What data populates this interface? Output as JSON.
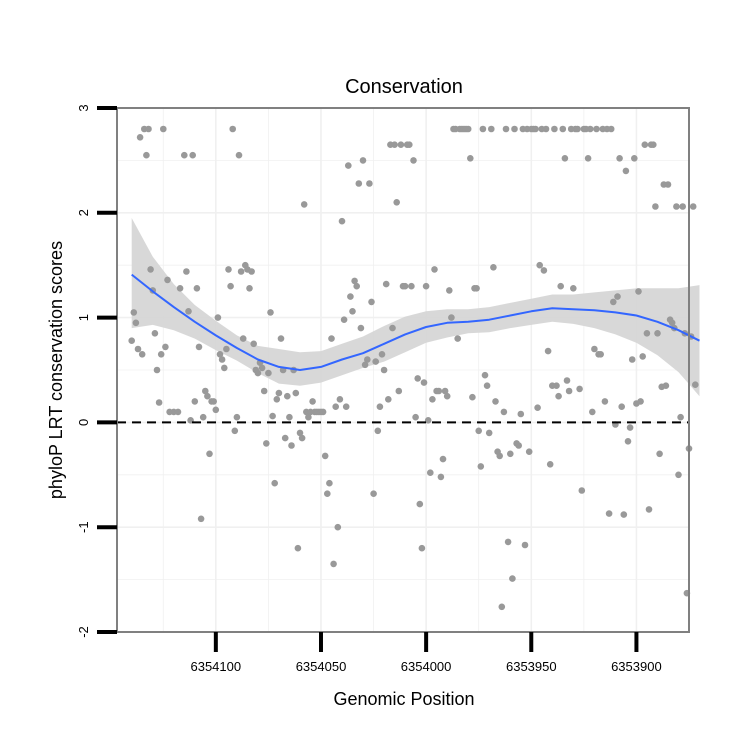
{
  "chart_data": {
    "type": "scatter",
    "title": "Conservation",
    "xlabel": "Genomic Position",
    "ylabel": "phyloP LRT conservation scores",
    "xlim": [
      6354147,
      6353875
    ],
    "x_reversed": true,
    "ylim": [
      -2,
      3
    ],
    "x_ticks": [
      6354100,
      6354050,
      6354000,
      6353950,
      6353900
    ],
    "x_tick_labels": [
      "6354100",
      "6354050",
      "6354000",
      "6353950",
      "6353900"
    ],
    "y_ticks": [
      -2,
      -1,
      0,
      1,
      2,
      3
    ],
    "y_tick_labels": [
      "-2",
      "-1",
      "0",
      "1",
      "2",
      "3"
    ],
    "grid": true,
    "reference_line": {
      "y": 0,
      "style": "dashed",
      "color": "#000000"
    },
    "colors": {
      "points": "#999999",
      "smooth_line": "#3366FF",
      "ribbon": "#d4d4d4",
      "grid": "#f0f0f0",
      "panel_border": "#808080"
    },
    "points": [
      [
        6354140,
        0.78
      ],
      [
        6354139,
        1.05
      ],
      [
        6354138,
        0.95
      ],
      [
        6354137,
        0.7
      ],
      [
        6354136,
        2.72
      ],
      [
        6354135,
        0.65
      ],
      [
        6354134,
        2.8
      ],
      [
        6354133,
        2.55
      ],
      [
        6354132,
        2.8
      ],
      [
        6354131,
        1.46
      ],
      [
        6354130,
        1.26
      ],
      [
        6354129,
        0.85
      ],
      [
        6354128,
        0.5
      ],
      [
        6354127,
        0.19
      ],
      [
        6354126,
        0.65
      ],
      [
        6354125,
        2.8
      ],
      [
        6354124,
        0.72
      ],
      [
        6354123,
        1.36
      ],
      [
        6354122,
        0.1
      ],
      [
        6354120,
        0.1
      ],
      [
        6354118,
        0.1
      ],
      [
        6354117,
        1.28
      ],
      [
        6354115,
        2.55
      ],
      [
        6354114,
        1.44
      ],
      [
        6354113,
        1.06
      ],
      [
        6354112,
        0.02
      ],
      [
        6354111,
        2.55
      ],
      [
        6354110,
        0.2
      ],
      [
        6354109,
        1.28
      ],
      [
        6354108,
        0.72
      ],
      [
        6354107,
        -0.92
      ],
      [
        6354106,
        0.05
      ],
      [
        6354105,
        0.3
      ],
      [
        6354104,
        0.25
      ],
      [
        6354103,
        -0.3
      ],
      [
        6354102,
        0.2
      ],
      [
        6354101,
        0.2
      ],
      [
        6354100,
        0.12
      ],
      [
        6354099,
        1.0
      ],
      [
        6354098,
        0.65
      ],
      [
        6354097,
        0.6
      ],
      [
        6354096,
        0.52
      ],
      [
        6354095,
        0.7
      ],
      [
        6354094,
        1.46
      ],
      [
        6354093,
        1.3
      ],
      [
        6354092,
        2.8
      ],
      [
        6354091,
        -0.08
      ],
      [
        6354090,
        0.05
      ],
      [
        6354089,
        2.55
      ],
      [
        6354088,
        1.44
      ],
      [
        6354087,
        0.8
      ],
      [
        6354086,
        1.5
      ],
      [
        6354085,
        1.46
      ],
      [
        6354084,
        1.28
      ],
      [
        6354083,
        1.44
      ],
      [
        6354082,
        0.75
      ],
      [
        6354081,
        0.5
      ],
      [
        6354080,
        0.47
      ],
      [
        6354079,
        0.57
      ],
      [
        6354078,
        0.52
      ],
      [
        6354077,
        0.3
      ],
      [
        6354076,
        -0.2
      ],
      [
        6354075,
        0.47
      ],
      [
        6354074,
        1.05
      ],
      [
        6354073,
        0.06
      ],
      [
        6354072,
        -0.58
      ],
      [
        6354071,
        0.22
      ],
      [
        6354070,
        0.28
      ],
      [
        6354069,
        0.8
      ],
      [
        6354068,
        0.5
      ],
      [
        6354067,
        -0.15
      ],
      [
        6354066,
        0.25
      ],
      [
        6354065,
        0.05
      ],
      [
        6354064,
        -0.22
      ],
      [
        6354063,
        0.5
      ],
      [
        6354062,
        0.28
      ],
      [
        6354061,
        -1.2
      ],
      [
        6354060,
        -0.1
      ],
      [
        6354059,
        -0.15
      ],
      [
        6354058,
        2.08
      ],
      [
        6354057,
        0.1
      ],
      [
        6354056,
        0.05
      ],
      [
        6354055,
        0.1
      ],
      [
        6354054,
        0.2
      ],
      [
        6354053,
        0.1
      ],
      [
        6354052,
        0.1
      ],
      [
        6354051,
        0.1
      ],
      [
        6354050,
        0.1
      ],
      [
        6354049,
        0.1
      ],
      [
        6354048,
        -0.32
      ],
      [
        6354047,
        -0.68
      ],
      [
        6354046,
        -0.58
      ],
      [
        6354045,
        0.8
      ],
      [
        6354044,
        -1.35
      ],
      [
        6354043,
        0.15
      ],
      [
        6354042,
        -1.0
      ],
      [
        6354041,
        0.22
      ],
      [
        6354040,
        1.92
      ],
      [
        6354039,
        0.98
      ],
      [
        6354038,
        0.15
      ],
      [
        6354037,
        2.45
      ],
      [
        6354036,
        1.2
      ],
      [
        6354035,
        1.06
      ],
      [
        6354034,
        1.35
      ],
      [
        6354033,
        1.3
      ],
      [
        6354032,
        2.28
      ],
      [
        6354031,
        0.9
      ],
      [
        6354030,
        2.5
      ],
      [
        6354029,
        0.55
      ],
      [
        6354028,
        0.6
      ],
      [
        6354027,
        2.28
      ],
      [
        6354026,
        1.15
      ],
      [
        6354025,
        -0.68
      ],
      [
        6354024,
        0.58
      ],
      [
        6354023,
        -0.08
      ],
      [
        6354022,
        0.15
      ],
      [
        6354021,
        0.65
      ],
      [
        6354020,
        0.5
      ],
      [
        6354019,
        1.32
      ],
      [
        6354018,
        0.22
      ],
      [
        6354017,
        2.65
      ],
      [
        6354016,
        0.9
      ],
      [
        6354015,
        2.65
      ],
      [
        6354014,
        2.1
      ],
      [
        6354013,
        0.3
      ],
      [
        6354012,
        2.65
      ],
      [
        6354011,
        1.3
      ],
      [
        6354010,
        1.3
      ],
      [
        6354009,
        2.65
      ],
      [
        6354008,
        2.65
      ],
      [
        6354007,
        1.3
      ],
      [
        6354006,
        2.5
      ],
      [
        6354005,
        0.05
      ],
      [
        6354004,
        0.42
      ],
      [
        6354003,
        -0.78
      ],
      [
        6354002,
        -1.2
      ],
      [
        6354001,
        0.38
      ],
      [
        6354000,
        1.3
      ],
      [
        6353999,
        0.02
      ],
      [
        6353998,
        -0.48
      ],
      [
        6353997,
        0.22
      ],
      [
        6353996,
        1.46
      ],
      [
        6353995,
        0.3
      ],
      [
        6353994,
        0.3
      ],
      [
        6353993,
        -0.52
      ],
      [
        6353992,
        -0.35
      ],
      [
        6353991,
        0.3
      ],
      [
        6353990,
        0.25
      ],
      [
        6353989,
        1.26
      ],
      [
        6353988,
        1.0
      ],
      [
        6353987,
        2.8
      ],
      [
        6353986,
        2.8
      ],
      [
        6353985,
        0.8
      ],
      [
        6353984,
        2.8
      ],
      [
        6353983,
        2.8
      ],
      [
        6353982,
        2.8
      ],
      [
        6353981,
        2.8
      ],
      [
        6353980,
        2.8
      ],
      [
        6353979,
        2.52
      ],
      [
        6353978,
        0.24
      ],
      [
        6353977,
        1.28
      ],
      [
        6353976,
        1.28
      ],
      [
        6353975,
        -0.08
      ],
      [
        6353974,
        -0.42
      ],
      [
        6353973,
        2.8
      ],
      [
        6353972,
        0.45
      ],
      [
        6353971,
        0.35
      ],
      [
        6353970,
        -0.1
      ],
      [
        6353969,
        2.8
      ],
      [
        6353968,
        1.48
      ],
      [
        6353967,
        0.2
      ],
      [
        6353966,
        -0.28
      ],
      [
        6353965,
        -0.32
      ],
      [
        6353964,
        -1.76
      ],
      [
        6353963,
        0.1
      ],
      [
        6353962,
        2.8
      ],
      [
        6353961,
        -1.14
      ],
      [
        6353960,
        -0.3
      ],
      [
        6353959,
        -1.49
      ],
      [
        6353958,
        2.8
      ],
      [
        6353957,
        -0.2
      ],
      [
        6353956,
        -0.22
      ],
      [
        6353955,
        0.08
      ],
      [
        6353954,
        2.8
      ],
      [
        6353953,
        -1.17
      ],
      [
        6353952,
        2.8
      ],
      [
        6353951,
        -0.28
      ],
      [
        6353950,
        2.8
      ],
      [
        6353949,
        2.8
      ],
      [
        6353948,
        2.8
      ],
      [
        6353947,
        0.14
      ],
      [
        6353946,
        1.5
      ],
      [
        6353945,
        2.8
      ],
      [
        6353944,
        1.45
      ],
      [
        6353943,
        2.8
      ],
      [
        6353942,
        0.68
      ],
      [
        6353941,
        -0.4
      ],
      [
        6353940,
        0.35
      ],
      [
        6353939,
        2.8
      ],
      [
        6353938,
        0.35
      ],
      [
        6353937,
        0.25
      ],
      [
        6353936,
        1.3
      ],
      [
        6353935,
        2.8
      ],
      [
        6353934,
        2.52
      ],
      [
        6353933,
        0.4
      ],
      [
        6353932,
        0.3
      ],
      [
        6353931,
        2.8
      ],
      [
        6353930,
        1.28
      ],
      [
        6353929,
        2.8
      ],
      [
        6353928,
        2.8
      ],
      [
        6353927,
        0.32
      ],
      [
        6353926,
        -0.65
      ],
      [
        6353925,
        2.8
      ],
      [
        6353924,
        2.8
      ],
      [
        6353923,
        2.52
      ],
      [
        6353922,
        2.8
      ],
      [
        6353921,
        0.1
      ],
      [
        6353920,
        0.7
      ],
      [
        6353919,
        2.8
      ],
      [
        6353918,
        0.65
      ],
      [
        6353917,
        0.65
      ],
      [
        6353916,
        2.8
      ],
      [
        6353915,
        0.2
      ],
      [
        6353914,
        2.8
      ],
      [
        6353913,
        -0.87
      ],
      [
        6353912,
        2.8
      ],
      [
        6353911,
        1.15
      ],
      [
        6353910,
        -0.02
      ],
      [
        6353909,
        1.2
      ],
      [
        6353908,
        2.52
      ],
      [
        6353907,
        0.15
      ],
      [
        6353906,
        -0.88
      ],
      [
        6353905,
        2.4
      ],
      [
        6353904,
        -0.18
      ],
      [
        6353903,
        -0.05
      ],
      [
        6353902,
        0.6
      ],
      [
        6353901,
        2.52
      ],
      [
        6353900,
        0.18
      ],
      [
        6353899,
        1.25
      ],
      [
        6353898,
        0.2
      ],
      [
        6353897,
        0.63
      ],
      [
        6353896,
        2.65
      ],
      [
        6353895,
        0.85
      ],
      [
        6353894,
        -0.83
      ],
      [
        6353893,
        2.65
      ],
      [
        6353892,
        2.65
      ],
      [
        6353891,
        2.06
      ],
      [
        6353890,
        0.85
      ],
      [
        6353889,
        -0.3
      ],
      [
        6353888,
        0.34
      ],
      [
        6353887,
        2.27
      ],
      [
        6353886,
        0.35
      ],
      [
        6353885,
        2.27
      ],
      [
        6353884,
        0.98
      ],
      [
        6353883,
        0.95
      ],
      [
        6353882,
        0.9
      ],
      [
        6353881,
        2.06
      ],
      [
        6353880,
        -0.5
      ],
      [
        6353879,
        0.05
      ],
      [
        6353878,
        2.06
      ],
      [
        6353877,
        0.85
      ],
      [
        6353876,
        -1.63
      ],
      [
        6353875,
        -0.25
      ],
      [
        6353874,
        0.82
      ],
      [
        6353873,
        2.06
      ],
      [
        6353872,
        0.36
      ]
    ],
    "smooth": {
      "x": [
        6354140,
        6354130,
        6354120,
        6354110,
        6354100,
        6354090,
        6354080,
        6354070,
        6354060,
        6354050,
        6354040,
        6354030,
        6354020,
        6354010,
        6354000,
        6353990,
        6353980,
        6353970,
        6353960,
        6353950,
        6353940,
        6353930,
        6353920,
        6353910,
        6353900,
        6353890,
        6353880,
        6353870
      ],
      "y": [
        1.41,
        1.25,
        1.1,
        0.96,
        0.83,
        0.71,
        0.6,
        0.53,
        0.5,
        0.53,
        0.6,
        0.66,
        0.75,
        0.84,
        0.91,
        0.95,
        0.96,
        0.98,
        1.02,
        1.06,
        1.09,
        1.08,
        1.07,
        1.05,
        1.02,
        0.96,
        0.88,
        0.78
      ],
      "lower": [
        0.9,
        0.93,
        0.88,
        0.8,
        0.69,
        0.59,
        0.47,
        0.37,
        0.35,
        0.38,
        0.45,
        0.52,
        0.58,
        0.67,
        0.76,
        0.81,
        0.85,
        0.86,
        0.9,
        0.93,
        0.96,
        0.94,
        0.9,
        0.84,
        0.76,
        0.64,
        0.48,
        0.25
      ],
      "upper": [
        1.95,
        1.58,
        1.32,
        1.12,
        0.97,
        0.83,
        0.73,
        0.7,
        0.67,
        0.68,
        0.75,
        0.82,
        0.92,
        1.01,
        1.06,
        1.08,
        1.08,
        1.1,
        1.14,
        1.18,
        1.22,
        1.22,
        1.24,
        1.26,
        1.28,
        1.28,
        1.28,
        1.31
      ]
    }
  }
}
